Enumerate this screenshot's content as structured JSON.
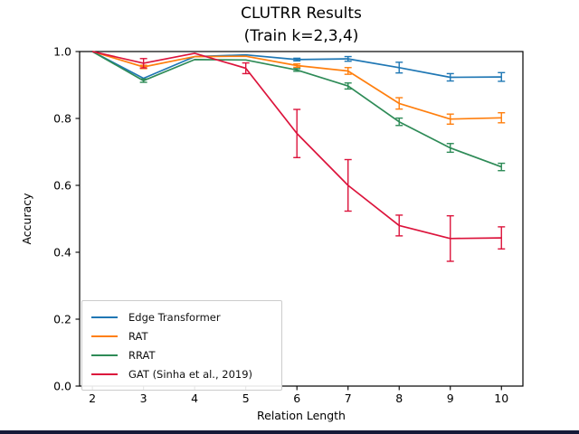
{
  "chart_data": {
    "type": "line",
    "title": "CLUTRR Results",
    "subtitle": "(Train k=2,3,4)",
    "xlabel": "Relation Length",
    "ylabel": "Accuracy",
    "x": [
      2,
      3,
      4,
      5,
      6,
      7,
      8,
      9,
      10
    ],
    "xtick_labels": [
      "2",
      "3",
      "4",
      "5",
      "6",
      "7",
      "8",
      "9",
      "10"
    ],
    "yticks": [
      0.0,
      0.2,
      0.4,
      0.6,
      0.8,
      1.0
    ],
    "ytick_labels": [
      "0.0",
      "0.2",
      "0.4",
      "0.6",
      "0.8",
      "1.0"
    ],
    "xlim": [
      1.75,
      10.42
    ],
    "ylim": [
      0.0,
      1.0
    ],
    "grid": false,
    "legend_position": "lower left",
    "axis_color": "#000000",
    "background_color": "#ffffff",
    "series": [
      {
        "name": "Edge Transformer",
        "color": "#1f77b4",
        "values": [
          1.0,
          0.92,
          0.985,
          0.99,
          0.976,
          0.978,
          0.952,
          0.923,
          0.924
        ],
        "errors": [
          0,
          0,
          0,
          0,
          0.004,
          0.007,
          0.016,
          0.011,
          0.013
        ]
      },
      {
        "name": "RAT",
        "color": "#ff7f0e",
        "values": [
          1.0,
          0.954,
          0.985,
          0.986,
          0.958,
          0.942,
          0.845,
          0.798,
          0.802
        ],
        "errors": [
          0,
          0.005,
          0,
          0,
          0.005,
          0.01,
          0.017,
          0.015,
          0.015
        ]
      },
      {
        "name": "RRAT",
        "color": "#2e8b57",
        "values": [
          1.0,
          0.913,
          0.976,
          0.975,
          0.945,
          0.897,
          0.79,
          0.712,
          0.655
        ],
        "errors": [
          0,
          0.005,
          0,
          0,
          0.004,
          0.009,
          0.011,
          0.013,
          0.011
        ]
      },
      {
        "name": "GAT (Sinha et al., 2019)",
        "color": "#dc143c",
        "values": [
          1.0,
          0.965,
          0.995,
          0.95,
          0.755,
          0.6,
          0.48,
          0.441,
          0.443
        ],
        "errors": [
          0,
          0.014,
          0,
          0.016,
          0.072,
          0.077,
          0.031,
          0.068,
          0.033
        ]
      }
    ]
  }
}
